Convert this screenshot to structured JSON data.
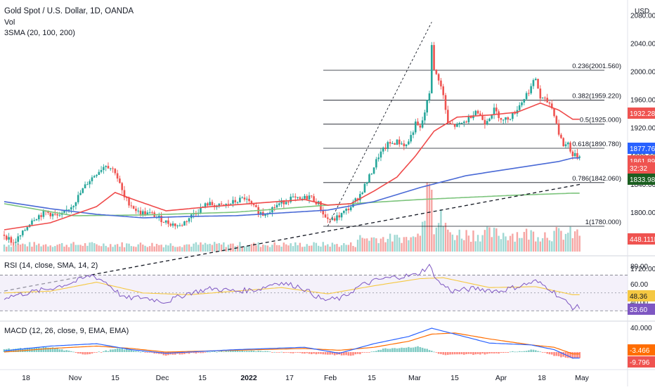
{
  "header": {
    "symbol_title": "Gold Spot / U.S. Dollar, 1D, OANDA",
    "vol_label": "Vol",
    "sma_label": "3SMA (20, 100, 200)",
    "currency": "USD"
  },
  "rsi_panel": {
    "label": "RSI (14, close, SMA, 14, 2)"
  },
  "macd_panel": {
    "label": "MACD (12, 26, close, 9, EMA, EMA)"
  },
  "colors": {
    "up": "#26a69a",
    "down": "#ef5350",
    "sma20": "#ef4a4a",
    "sma100": "#4a6ad6",
    "sma200": "#7cc47c",
    "rsi": "#7e57c2",
    "rsi_ma": "#f5c842",
    "macd_line": "#2962ff",
    "signal_line": "#ff6d00"
  },
  "chart_data": [
    {
      "type": "candlestick",
      "title": "Gold Spot / U.S. Dollar, 1D, OANDA",
      "yaxis_unit": "USD",
      "yticks": [
        "2080.000",
        "2040.000",
        "2000.000",
        "1960.000",
        "1920.000",
        "1880.000",
        "1840.000",
        "1800.000",
        "1760.000",
        "1720.000"
      ],
      "xticks": [
        "18",
        "Nov",
        "15",
        "Dec",
        "15",
        "2022",
        "17",
        "Feb",
        "15",
        "Mar",
        "15",
        "Apr",
        "18",
        "May"
      ],
      "price_series_knots": [
        [
          0,
          1768
        ],
        [
          4,
          1756
        ],
        [
          8,
          1770
        ],
        [
          12,
          1790
        ],
        [
          18,
          1800
        ],
        [
          24,
          1793
        ],
        [
          30,
          1812
        ],
        [
          36,
          1842
        ],
        [
          40,
          1856
        ],
        [
          44,
          1868
        ],
        [
          48,
          1858
        ],
        [
          52,
          1820
        ],
        [
          58,
          1800
        ],
        [
          64,
          1797
        ],
        [
          70,
          1786
        ],
        [
          76,
          1780
        ],
        [
          82,
          1798
        ],
        [
          88,
          1812
        ],
        [
          94,
          1808
        ],
        [
          100,
          1815
        ],
        [
          104,
          1820
        ],
        [
          108,
          1806
        ],
        [
          112,
          1797
        ],
        [
          118,
          1810
        ],
        [
          124,
          1820
        ],
        [
          128,
          1817
        ],
        [
          132,
          1823
        ],
        [
          136,
          1812
        ],
        [
          139,
          1792
        ],
        [
          142,
          1788
        ],
        [
          146,
          1797
        ],
        [
          150,
          1808
        ],
        [
          154,
          1825
        ],
        [
          158,
          1850
        ],
        [
          162,
          1880
        ],
        [
          166,
          1896
        ],
        [
          170,
          1900
        ],
        [
          174,
          1895
        ],
        [
          176,
          1908
        ],
        [
          178,
          1925
        ],
        [
          180,
          1918
        ],
        [
          182,
          1942
        ],
        [
          184,
          1970
        ],
        [
          185,
          2040
        ],
        [
          186,
          2000
        ],
        [
          188,
          1990
        ],
        [
          190,
          1965
        ],
        [
          192,
          1925
        ],
        [
          196,
          1922
        ],
        [
          200,
          1930
        ],
        [
          204,
          1945
        ],
        [
          208,
          1928
        ],
        [
          212,
          1945
        ],
        [
          216,
          1930
        ],
        [
          220,
          1938
        ],
        [
          224,
          1957
        ],
        [
          228,
          1978
        ],
        [
          230,
          1990
        ],
        [
          232,
          1962
        ],
        [
          236,
          1955
        ],
        [
          238,
          1940
        ],
        [
          240,
          1912
        ],
        [
          242,
          1895
        ],
        [
          244,
          1898
        ],
        [
          246,
          1880
        ]
      ],
      "sma20_knots": [
        [
          0,
          1775
        ],
        [
          20,
          1785
        ],
        [
          40,
          1808
        ],
        [
          48,
          1828
        ],
        [
          56,
          1818
        ],
        [
          70,
          1802
        ],
        [
          90,
          1808
        ],
        [
          110,
          1813
        ],
        [
          130,
          1818
        ],
        [
          140,
          1810
        ],
        [
          150,
          1812
        ],
        [
          160,
          1830
        ],
        [
          170,
          1850
        ],
        [
          178,
          1880
        ],
        [
          186,
          1915
        ],
        [
          196,
          1935
        ],
        [
          210,
          1938
        ],
        [
          222,
          1942
        ],
        [
          232,
          1955
        ],
        [
          240,
          1945
        ],
        [
          246,
          1932
        ]
      ],
      "sma100_knots": [
        [
          0,
          1815
        ],
        [
          20,
          1805
        ],
        [
          40,
          1797
        ],
        [
          60,
          1792
        ],
        [
          80,
          1794
        ],
        [
          100,
          1795
        ],
        [
          120,
          1799
        ],
        [
          140,
          1803
        ],
        [
          160,
          1815
        ],
        [
          180,
          1835
        ],
        [
          200,
          1852
        ],
        [
          220,
          1862
        ],
        [
          240,
          1872
        ],
        [
          246,
          1877
        ]
      ],
      "sma200_knots": [
        [
          0,
          1812
        ],
        [
          30,
          1795
        ],
        [
          60,
          1796
        ],
        [
          100,
          1800
        ],
        [
          140,
          1810
        ],
        [
          180,
          1818
        ],
        [
          220,
          1824
        ],
        [
          246,
          1827
        ]
      ],
      "fibonacci_levels": [
        {
          "ratio": "0.236",
          "price": 2001.56,
          "label": "0.236(2001.560)"
        },
        {
          "ratio": "0.382",
          "price": 1959.22,
          "label": "0.382(1959.220)"
        },
        {
          "ratio": "0.5",
          "price": 1925.0,
          "label": "0.5(1925.000)"
        },
        {
          "ratio": "0.618",
          "price": 1890.78,
          "label": "0.618(1890.780)"
        },
        {
          "ratio": "0.786",
          "price": 1842.06,
          "label": "0.786(1842.060)"
        },
        {
          "ratio": "1",
          "price": 1780.0,
          "label": "1(1780.000)"
        }
      ],
      "trendline_price": {
        "start_index": 0,
        "start_price": 1722,
        "end_index": 250,
        "end_price": 1840
      },
      "fib_dashed_line": {
        "from_index": 140,
        "from_price": 1780,
        "to_index": 185,
        "to_price": 2070
      },
      "price_labels": [
        {
          "value": "1932.284",
          "color": "#ef5350",
          "price": 1932.284
        },
        {
          "value": "1877.760",
          "color": "#2962ff",
          "price": 1877.76
        },
        {
          "value": "1861.890",
          "color": "#ef5350",
          "price": 1861.89
        },
        {
          "value": "32:32",
          "color": "#ef5350",
          "price": 1853
        },
        {
          "value": "1833.986",
          "color": "#1b5e20",
          "price": 1833.986
        }
      ],
      "volume_last": "448.111K",
      "volume_profile_note": "recent volume bars visible from Feb onward"
    },
    {
      "type": "line",
      "title": "RSI (14, close, SMA, 14, 2)",
      "yticks": [
        "80.00",
        "60.00",
        "40.00"
      ],
      "ylim": [
        20,
        90
      ],
      "overbought": 70,
      "oversold": 30,
      "rsi_last": "33.60",
      "rsi_ma_last": "48.36"
    },
    {
      "type": "line",
      "title": "MACD (12, 26, close, 9, EMA, EMA)",
      "yticks": [
        "40.000"
      ],
      "macd_last": "-9.796",
      "signal_last": "-3.466"
    }
  ]
}
